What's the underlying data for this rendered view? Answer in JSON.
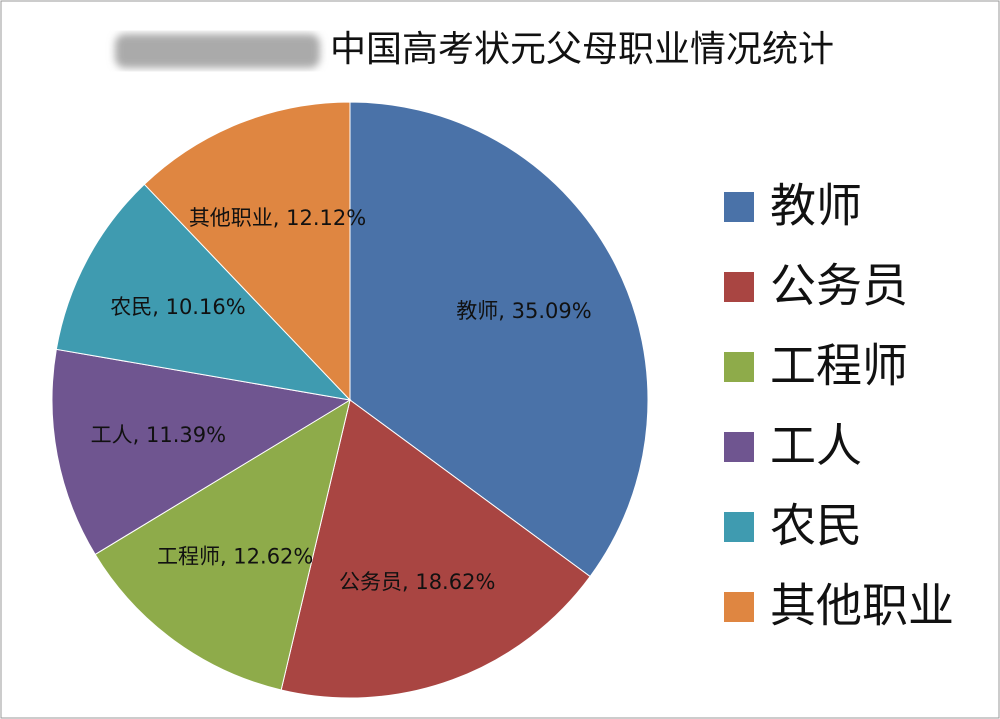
{
  "chart_data": {
    "type": "pie",
    "title": "中国高考状元父母职业情况统计",
    "categories": [
      "教师",
      "公务员",
      "工程师",
      "工人",
      "农民",
      "其他职业"
    ],
    "values": [
      35.09,
      18.62,
      12.62,
      11.39,
      10.16,
      12.12
    ],
    "value_labels": [
      "教师, 35.09%",
      "公务员, 18.62%",
      "工程师, 12.62%",
      "工人, 11.39%",
      "农民, 10.16%",
      "其他职业, 12.12%"
    ],
    "colors": [
      "#4a72a8",
      "#a94542",
      "#8eab4a",
      "#6f5590",
      "#3f9bb0",
      "#df8641"
    ],
    "legend": "right"
  }
}
